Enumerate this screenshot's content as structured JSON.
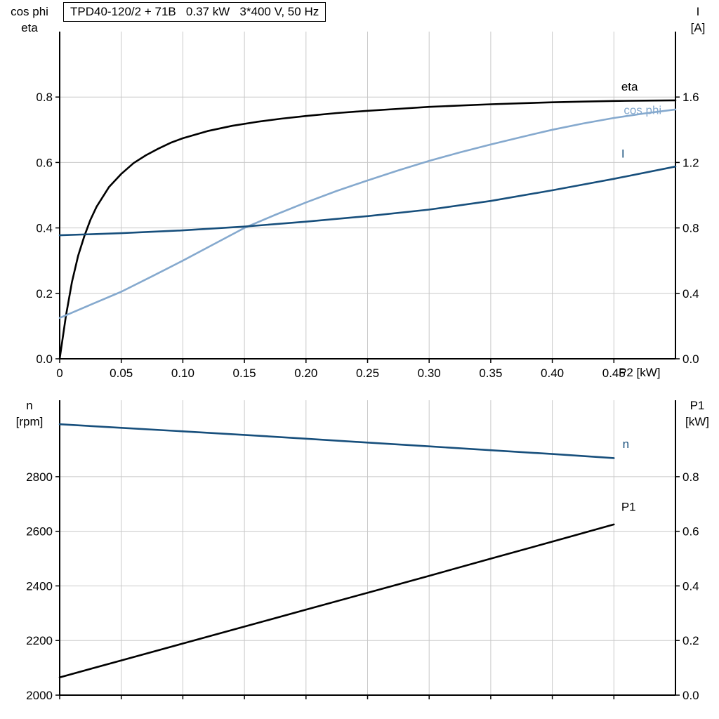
{
  "colors": {
    "eta": "#000000",
    "cos_phi": "#85a9ce",
    "current": "#174f7c",
    "speed": "#174f7c",
    "p1": "#000000",
    "grid": "#c8c8c8",
    "axis": "#000000"
  },
  "labels": {
    "top_left_line1": "cos phi",
    "top_left_line2": "eta",
    "top_right_line1": "I",
    "top_right_line2": "[A]",
    "top_x_axis": "P2 [kW]",
    "bottom_left_line1": "n",
    "bottom_left_line2": "[rpm]",
    "bottom_right_line1": "P1",
    "bottom_right_line2": "[kW]"
  },
  "chart_data": [
    {
      "type": "line",
      "title": "TPD40-120/2 + 71B   0.37 kW   3*400 V, 50 Hz",
      "xlabel": "P2 [kW]",
      "ylabel_left": "cos phi / eta",
      "ylabel_right": "I [A]",
      "xlim": [
        0,
        0.5
      ],
      "ylim_left": [
        0,
        1.0
      ],
      "ylim_right": [
        0,
        2.0
      ],
      "grid": true,
      "xticks": {
        "values": [
          0,
          0.05,
          0.1,
          0.15,
          0.2,
          0.25,
          0.3,
          0.35,
          0.4,
          0.45
        ],
        "labels": [
          "0",
          "0.05",
          "0.10",
          "0.15",
          "0.20",
          "0.25",
          "0.30",
          "0.35",
          "0.40",
          "0.45"
        ]
      },
      "yticks_left": {
        "values": [
          0,
          0.2,
          0.4,
          0.6,
          0.8
        ],
        "labels": [
          "0.0",
          "0.2",
          "0.4",
          "0.6",
          "0.8"
        ]
      },
      "yticks_right": {
        "values": [
          0,
          0.4,
          0.8,
          1.2,
          1.6
        ],
        "labels": [
          "0.0",
          "0.4",
          "0.8",
          "1.2",
          "1.6"
        ]
      },
      "series": [
        {
          "name": "eta",
          "axis": "left",
          "color": "#000000",
          "label": {
            "text": "eta",
            "x": 0.456,
            "y": 0.82
          },
          "x": [
            0,
            0.005,
            0.01,
            0.015,
            0.02,
            0.025,
            0.03,
            0.04,
            0.05,
            0.06,
            0.07,
            0.08,
            0.09,
            0.1,
            0.12,
            0.14,
            0.16,
            0.18,
            0.2,
            0.225,
            0.25,
            0.275,
            0.3,
            0.325,
            0.35,
            0.375,
            0.4,
            0.425,
            0.45,
            0.475,
            0.5
          ],
          "y": [
            0,
            0.13,
            0.235,
            0.315,
            0.375,
            0.425,
            0.465,
            0.525,
            0.565,
            0.598,
            0.622,
            0.642,
            0.66,
            0.674,
            0.696,
            0.712,
            0.724,
            0.734,
            0.742,
            0.751,
            0.758,
            0.764,
            0.77,
            0.774,
            0.778,
            0.781,
            0.784,
            0.786,
            0.788,
            0.789,
            0.79
          ]
        },
        {
          "name": "cos phi",
          "axis": "left",
          "color": "#85a9ce",
          "label": {
            "text": "cos phi",
            "x": 0.458,
            "y": 0.748
          },
          "x": [
            0,
            0.025,
            0.05,
            0.075,
            0.1,
            0.125,
            0.15,
            0.175,
            0.2,
            0.225,
            0.25,
            0.275,
            0.3,
            0.325,
            0.35,
            0.375,
            0.4,
            0.425,
            0.45,
            0.475,
            0.5
          ],
          "y": [
            0.125,
            0.165,
            0.205,
            0.252,
            0.3,
            0.35,
            0.4,
            0.44,
            0.478,
            0.513,
            0.545,
            0.576,
            0.605,
            0.631,
            0.655,
            0.678,
            0.7,
            0.719,
            0.736,
            0.75,
            0.762
          ]
        },
        {
          "name": "I",
          "axis": "right",
          "color": "#174f7c",
          "label": {
            "text": "I",
            "x": 0.456,
            "y": 1.23
          },
          "x": [
            0,
            0.05,
            0.1,
            0.15,
            0.2,
            0.25,
            0.3,
            0.35,
            0.4,
            0.45,
            0.5
          ],
          "y": [
            0.755,
            0.768,
            0.785,
            0.808,
            0.838,
            0.872,
            0.912,
            0.965,
            1.03,
            1.1,
            1.175
          ]
        }
      ]
    },
    {
      "type": "line",
      "title": "",
      "xlabel": "",
      "ylabel_left": "n [rpm]",
      "ylabel_right": "P1 [kW]",
      "xlim": [
        0,
        0.5
      ],
      "ylim_left": [
        2000,
        3080
      ],
      "ylim_right": [
        0,
        1.08
      ],
      "grid": true,
      "xticks": {
        "values": [
          0,
          0.05,
          0.1,
          0.15,
          0.2,
          0.25,
          0.3,
          0.35,
          0.4,
          0.45
        ],
        "labels": [
          "",
          "",
          "",
          "",
          "",
          "",
          "",
          "",
          "",
          ""
        ]
      },
      "yticks_left": {
        "values": [
          2000,
          2200,
          2400,
          2600,
          2800
        ],
        "labels": [
          "2000",
          "2200",
          "2400",
          "2600",
          "2800"
        ]
      },
      "yticks_right": {
        "values": [
          0,
          0.2,
          0.4,
          0.6,
          0.8
        ],
        "labels": [
          "0.0",
          "0.2",
          "0.4",
          "0.6",
          "0.8"
        ]
      },
      "series": [
        {
          "name": "n",
          "axis": "left",
          "color": "#174f7c",
          "label": {
            "text": "n",
            "x": 0.457,
            "y": 2905
          },
          "x": [
            0,
            0.05,
            0.1,
            0.15,
            0.2,
            0.25,
            0.3,
            0.35,
            0.4,
            0.45
          ],
          "y": [
            2992,
            2979,
            2966,
            2953,
            2939,
            2925,
            2911,
            2897,
            2883,
            2868
          ]
        },
        {
          "name": "P1",
          "axis": "right",
          "color": "#000000",
          "label": {
            "text": "P1",
            "x": 0.456,
            "y": 0.675
          },
          "x": [
            0,
            0.05,
            0.1,
            0.15,
            0.2,
            0.25,
            0.3,
            0.35,
            0.4,
            0.45
          ],
          "y": [
            0.065,
            0.127,
            0.189,
            0.251,
            0.313,
            0.375,
            0.437,
            0.5,
            0.562,
            0.625
          ]
        }
      ]
    }
  ]
}
